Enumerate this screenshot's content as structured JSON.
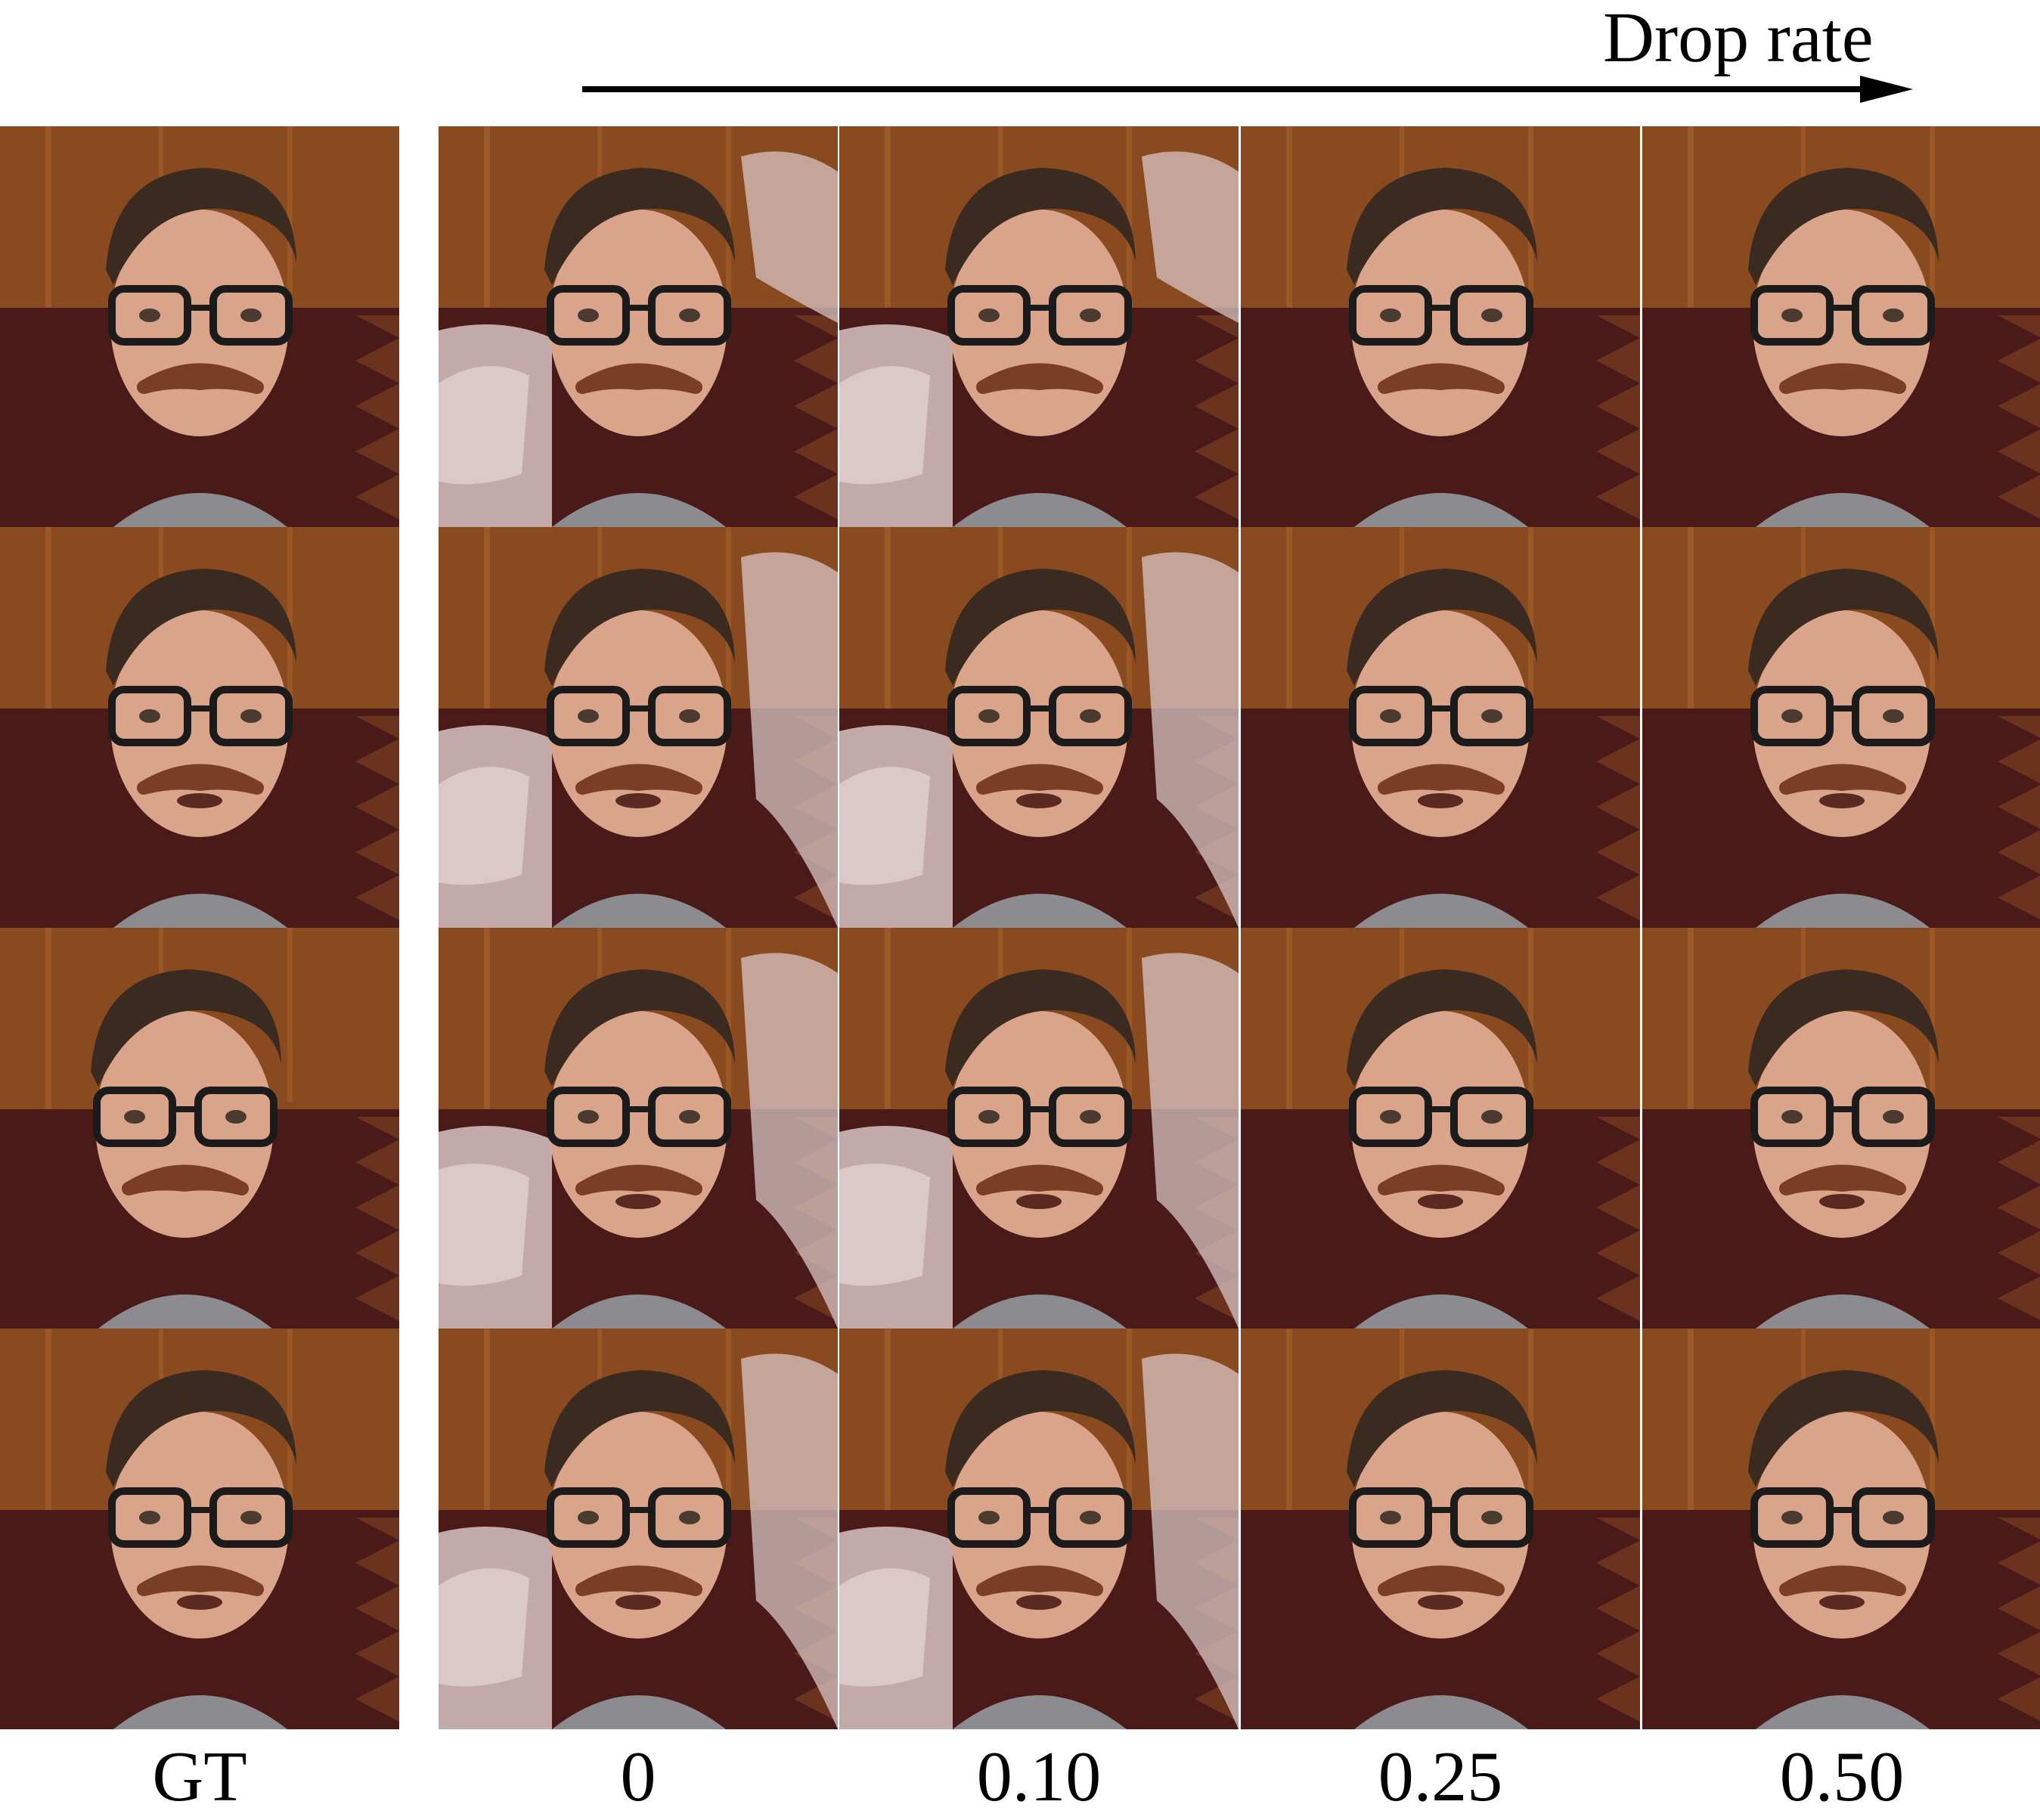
{
  "header": {
    "label": "Drop rate"
  },
  "columns": [
    {
      "label": "GT",
      "artifact": 0
    },
    {
      "label": "0",
      "artifact": 1
    },
    {
      "label": "0.10",
      "artifact": 1
    },
    {
      "label": "0.25",
      "artifact": 0
    },
    {
      "label": "0.50",
      "artifact": 0
    }
  ],
  "rows": 4,
  "colors": {
    "wood": "#8a4a1f",
    "wood_light": "#a9622c",
    "banner": "#4a1a18",
    "skin": "#d9a48a",
    "hair": "#3b2a20",
    "mustache": "#7a3e24",
    "artifact": "#d8c4c4",
    "shirt": "#8c8c90"
  }
}
